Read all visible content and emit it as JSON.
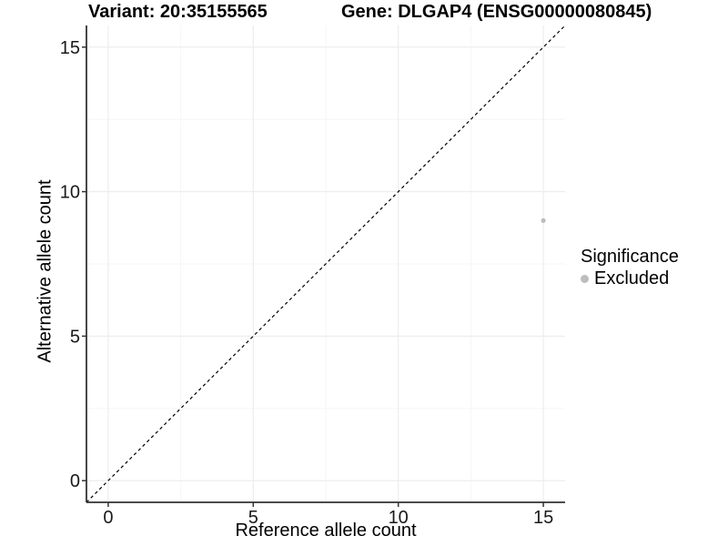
{
  "chart_data": {
    "type": "scatter",
    "title_left": "Variant: 20:35155565",
    "title_right": "Gene: DLGAP4 (ENSG00000080845)",
    "xlabel": "Reference allele count",
    "ylabel": "Alternative allele count",
    "xlim": [
      -0.75,
      15.75
    ],
    "ylim": [
      -0.75,
      15.75
    ],
    "x_major_ticks": [
      0,
      5,
      10,
      15
    ],
    "y_major_ticks": [
      0,
      5,
      10,
      15
    ],
    "x_minor_ticks": [
      2.5,
      7.5,
      12.5
    ],
    "y_minor_ticks": [
      2.5,
      7.5,
      12.5
    ],
    "grid": true,
    "series": [
      {
        "name": "Excluded",
        "color": "#bdbdbd",
        "points": [
          {
            "x": 15,
            "y": 9
          }
        ]
      }
    ],
    "reference_line": {
      "kind": "identity",
      "from": [
        -0.75,
        -0.75
      ],
      "to": [
        15.75,
        15.75
      ],
      "style": "dashed",
      "color": "#000000"
    },
    "legend": {
      "title": "Significance",
      "position": "right",
      "items": [
        {
          "label": "Excluded",
          "color": "#bdbdbd"
        }
      ]
    },
    "colors": {
      "background": "#ffffff",
      "grid_major": "#ececec",
      "grid_minor": "#f6f6f6",
      "axis_line": "#333333",
      "tick_label": "#1a1a1a",
      "point": "#bdbdbd"
    }
  }
}
